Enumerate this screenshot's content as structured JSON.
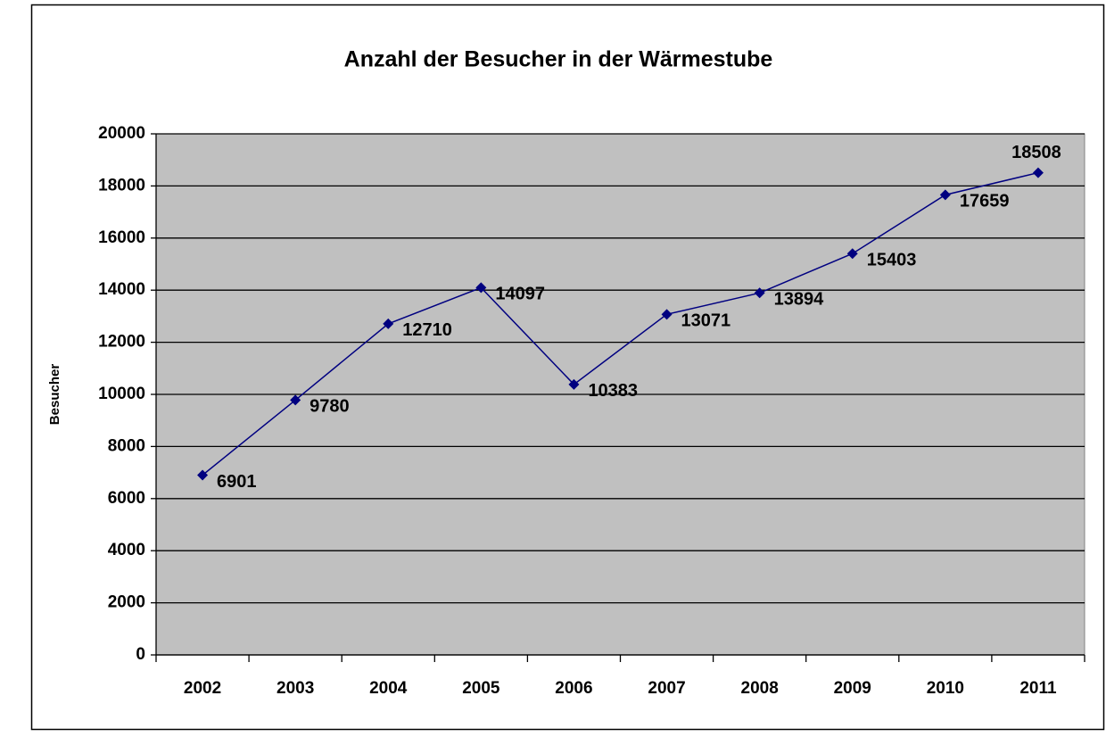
{
  "chart_data": {
    "type": "line",
    "title": "Anzahl der Besucher in der Wärmestube",
    "y_label": "Besucher",
    "categories": [
      "2002",
      "2003",
      "2004",
      "2005",
      "2006",
      "2007",
      "2008",
      "2009",
      "2010",
      "2011"
    ],
    "values": [
      6901,
      9780,
      12710,
      14097,
      10383,
      13071,
      13894,
      15403,
      17659,
      18508
    ],
    "color": "#000080",
    "plot_background": "#c0c0c0",
    "ylim": [
      0,
      20000
    ],
    "yticks": [
      0,
      2000,
      4000,
      6000,
      8000,
      10000,
      12000,
      14000,
      16000,
      18000,
      20000
    ],
    "grid": true,
    "markers": "diamond",
    "data_labels": true
  }
}
